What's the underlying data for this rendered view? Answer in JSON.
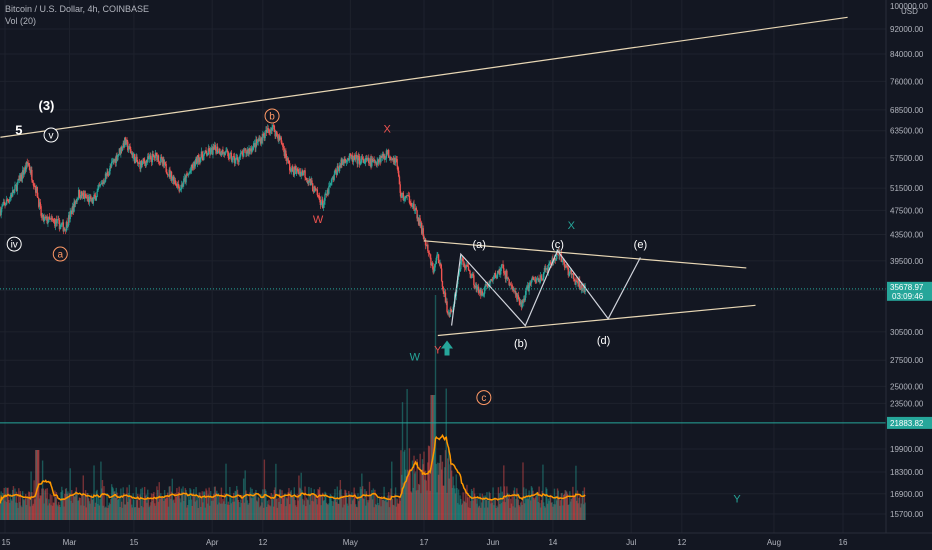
{
  "header": {
    "symbol_line": "Bitcoin / U.S. Dollar, 4h, COINBASE",
    "volume_line": "Vol (20)"
  },
  "currency": "USD",
  "colors": {
    "background": "#131722",
    "grid": "#1e222d",
    "axis_text": "#b2b5be",
    "candle_up": "#26a69a",
    "candle_down": "#ef5350",
    "trendline": "#e8d7b5",
    "wave_path": "#d1d4dc",
    "volume_ma": "#ff9800",
    "price_tag": "#26a69a",
    "current_price_line": "#26a69a"
  },
  "chart_data": {
    "type": "candlestick",
    "title": "Bitcoin / U.S. Dollar, 4h, COINBASE",
    "y_scale": "log",
    "ylim": [
      14500,
      100000
    ],
    "y_ticks": [
      100000.0,
      92000.0,
      84000.0,
      76000.0,
      68500.0,
      63500.0,
      57500.0,
      51500.0,
      47500.0,
      43500.0,
      39500.0,
      35500.0,
      30500.0,
      27500.0,
      25000.0,
      23500.0,
      19900.0,
      18300.0,
      16900.0,
      15700.0
    ],
    "y_tick_labels": [
      "100000.00",
      "92000.00",
      "84000.00",
      "76000.00",
      "68500.00",
      "63500.00",
      "57500.00",
      "51500.00",
      "47500.00",
      "43500.00",
      "39500.00",
      "35500.00",
      "30500.00",
      "27500.00",
      "25000.00",
      "23500.00",
      "19900.00",
      "18300.00",
      "16900.00",
      "15700.00"
    ],
    "x_ticks": [
      {
        "date": "2021-02-15",
        "label": "15"
      },
      {
        "date": "2021-03-01",
        "label": "Mar"
      },
      {
        "date": "2021-03-15",
        "label": "15"
      },
      {
        "date": "2021-04-01",
        "label": "Apr"
      },
      {
        "date": "2021-04-12",
        "label": "12"
      },
      {
        "date": "2021-05-01",
        "label": "May"
      },
      {
        "date": "2021-05-17",
        "label": "17"
      },
      {
        "date": "2021-06-01",
        "label": "Jun"
      },
      {
        "date": "2021-06-14",
        "label": "14"
      },
      {
        "date": "2021-07-01",
        "label": "Jul"
      },
      {
        "date": "2021-07-12",
        "label": "12"
      },
      {
        "date": "2021-08-01",
        "label": "Aug"
      },
      {
        "date": "2021-08-16",
        "label": "16"
      }
    ],
    "current_price": {
      "value": 35678.97,
      "label": "35678.97",
      "countdown": "03:09:46"
    },
    "horizontal_line": {
      "value": 21883.82,
      "label": "21883.82"
    },
    "price_path": [
      {
        "date": "2021-02-14",
        "close": 47500
      },
      {
        "date": "2021-02-17",
        "close": 51000
      },
      {
        "date": "2021-02-20",
        "close": 56500
      },
      {
        "date": "2021-02-22",
        "close": 50500
      },
      {
        "date": "2021-02-23",
        "close": 46000
      },
      {
        "date": "2021-02-26",
        "close": 45500
      },
      {
        "date": "2021-02-28",
        "close": 44500
      },
      {
        "date": "2021-03-03",
        "close": 50500
      },
      {
        "date": "2021-03-06",
        "close": 49000
      },
      {
        "date": "2021-03-09",
        "close": 54000
      },
      {
        "date": "2021-03-13",
        "close": 61000
      },
      {
        "date": "2021-03-16",
        "close": 56000
      },
      {
        "date": "2021-03-20",
        "close": 58000
      },
      {
        "date": "2021-03-25",
        "close": 51500
      },
      {
        "date": "2021-03-29",
        "close": 57500
      },
      {
        "date": "2021-04-02",
        "close": 59500
      },
      {
        "date": "2021-04-06",
        "close": 57000
      },
      {
        "date": "2021-04-10",
        "close": 60000
      },
      {
        "date": "2021-04-14",
        "close": 64500
      },
      {
        "date": "2021-04-16",
        "close": 61000
      },
      {
        "date": "2021-04-18",
        "close": 55000
      },
      {
        "date": "2021-04-21",
        "close": 54500
      },
      {
        "date": "2021-04-25",
        "close": 48500
      },
      {
        "date": "2021-04-28",
        "close": 55000
      },
      {
        "date": "2021-04-30",
        "close": 57500
      },
      {
        "date": "2021-05-03",
        "close": 57000
      },
      {
        "date": "2021-05-06",
        "close": 56500
      },
      {
        "date": "2021-05-09",
        "close": 58500
      },
      {
        "date": "2021-05-11",
        "close": 57000
      },
      {
        "date": "2021-05-12",
        "close": 50000
      },
      {
        "date": "2021-05-14",
        "close": 49500
      },
      {
        "date": "2021-05-16",
        "close": 45500
      },
      {
        "date": "2021-05-17",
        "close": 43000
      },
      {
        "date": "2021-05-19",
        "close": 38000
      },
      {
        "date": "2021-05-20",
        "close": 40500
      },
      {
        "date": "2021-05-22",
        "close": 33000
      },
      {
        "date": "2021-05-23",
        "close": 32500
      },
      {
        "date": "2021-05-25",
        "close": 39500
      },
      {
        "date": "2021-05-27",
        "close": 38000
      },
      {
        "date": "2021-05-29",
        "close": 35000
      },
      {
        "date": "2021-06-01",
        "close": 37000
      },
      {
        "date": "2021-06-03",
        "close": 38500
      },
      {
        "date": "2021-06-05",
        "close": 36000
      },
      {
        "date": "2021-06-07",
        "close": 33500
      },
      {
        "date": "2021-06-09",
        "close": 36500
      },
      {
        "date": "2021-06-11",
        "close": 37000
      },
      {
        "date": "2021-06-13",
        "close": 38500
      },
      {
        "date": "2021-06-15",
        "close": 40500
      },
      {
        "date": "2021-06-17",
        "close": 38500
      },
      {
        "date": "2021-06-19",
        "close": 36500
      },
      {
        "date": "2021-06-21",
        "close": 35700
      }
    ],
    "trendlines": [
      {
        "name": "upper-channel",
        "from": {
          "date": "2021-02-14",
          "price": 62000
        },
        "to": {
          "date": "2021-08-17",
          "price": 96000
        }
      },
      {
        "name": "triangle-top",
        "from": {
          "date": "2021-05-17",
          "price": 42500
        },
        "to": {
          "date": "2021-07-26",
          "price": 38500
        }
      },
      {
        "name": "triangle-bottom",
        "from": {
          "date": "2021-05-20",
          "price": 30100
        },
        "to": {
          "date": "2021-07-28",
          "price": 33600
        }
      }
    ],
    "wave_path": [
      {
        "date": "2021-05-23",
        "price": 31200
      },
      {
        "date": "2021-05-25",
        "price": 40500
      },
      {
        "date": "2021-06-08",
        "price": 31200
      },
      {
        "date": "2021-06-15",
        "price": 41000
      },
      {
        "date": "2021-06-26",
        "price": 32000
      },
      {
        "date": "2021-07-03",
        "price": 40000
      }
    ],
    "annotations": [
      {
        "text": "(3)",
        "style": "plain-bold",
        "color": "#ffffff",
        "date": "2021-02-24",
        "price": 69500
      },
      {
        "text": "5",
        "style": "plain-bold",
        "color": "#ffffff",
        "date": "2021-02-18",
        "price": 63500
      },
      {
        "text": "v",
        "style": "circled",
        "color": "#ffffff",
        "date": "2021-02-25",
        "price": 62500
      },
      {
        "text": "b",
        "style": "circled",
        "color": "#ff9966",
        "date": "2021-04-14",
        "price": 67000
      },
      {
        "text": "X",
        "style": "plain",
        "color": "#ef5350",
        "date": "2021-05-09",
        "price": 64000
      },
      {
        "text": "W",
        "style": "plain",
        "color": "#ef5350",
        "date": "2021-04-24",
        "price": 46000
      },
      {
        "text": "iv",
        "style": "circled",
        "color": "#ffffff",
        "date": "2021-02-17",
        "price": 42000
      },
      {
        "text": "a",
        "style": "circled",
        "color": "#ff9966",
        "date": "2021-02-27",
        "price": 40500
      },
      {
        "text": "(a)",
        "style": "plain",
        "color": "#ffffff",
        "date": "2021-05-29",
        "price": 42000
      },
      {
        "text": "(c)",
        "style": "plain",
        "color": "#ffffff",
        "date": "2021-06-15",
        "price": 42000
      },
      {
        "text": "(e)",
        "style": "plain",
        "color": "#ffffff",
        "date": "2021-07-03",
        "price": 42000
      },
      {
        "text": "X",
        "style": "plain",
        "color": "#26a69a",
        "date": "2021-06-18",
        "price": 45000
      },
      {
        "text": "(b)",
        "style": "plain",
        "color": "#ffffff",
        "date": "2021-06-07",
        "price": 29300
      },
      {
        "text": "(d)",
        "style": "plain",
        "color": "#ffffff",
        "date": "2021-06-25",
        "price": 29600
      },
      {
        "text": "W",
        "style": "plain",
        "color": "#26a69a",
        "date": "2021-05-15",
        "price": 27900
      },
      {
        "text": "Y",
        "style": "plain",
        "color": "#ef5350",
        "date": "2021-05-20",
        "price": 28600
      },
      {
        "text": "c",
        "style": "circled",
        "color": "#ff9966",
        "date": "2021-05-30",
        "price": 24000
      },
      {
        "text": "Y",
        "style": "plain",
        "color": "#26a69a",
        "date": "2021-07-24",
        "price": 16600
      }
    ],
    "marker": {
      "shape": "up-arrow",
      "color": "#26a69a",
      "date": "2021-05-22",
      "price": 28700
    },
    "volume": {
      "name": "Vol (20)",
      "has_ma_line": true
    }
  }
}
